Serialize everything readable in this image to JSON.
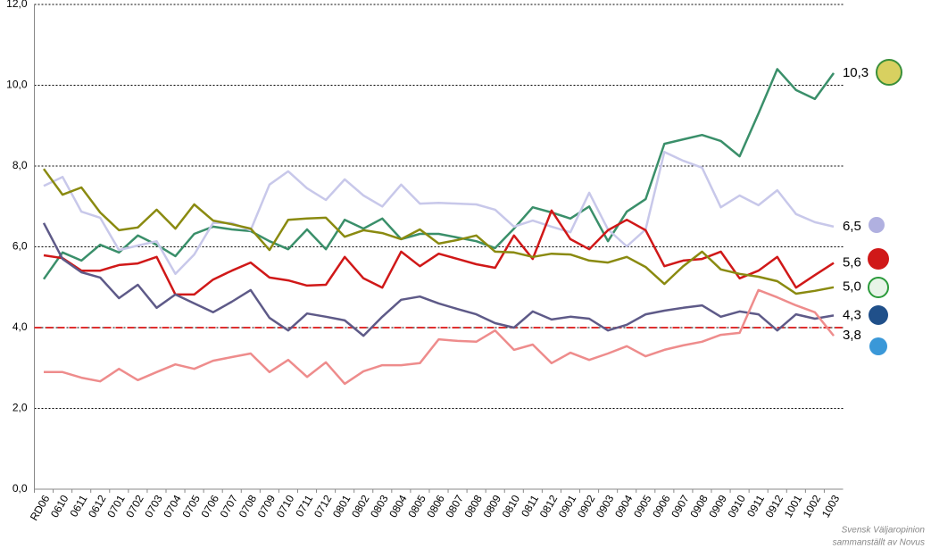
{
  "chart_data": {
    "type": "line",
    "categories": [
      "RD06",
      "0610",
      "0611",
      "0612",
      "0701",
      "0702",
      "0703",
      "0704",
      "0705",
      "0706",
      "0707",
      "0708",
      "0709",
      "0710",
      "0711",
      "0712",
      "0801",
      "0802",
      "0803",
      "0804",
      "0805",
      "0806",
      "0807",
      "0808",
      "0809",
      "0810",
      "0811",
      "0812",
      "0901",
      "0902",
      "0903",
      "0904",
      "0905",
      "0906",
      "0907",
      "0908",
      "0909",
      "0910",
      "0911",
      "0912",
      "1001",
      "1002",
      "1003"
    ],
    "ylim": [
      0,
      12
    ],
    "yticks": [
      {
        "value": 0,
        "label": "0,0"
      },
      {
        "value": 2,
        "label": "2,0"
      },
      {
        "value": 4,
        "label": "4,0"
      },
      {
        "value": 6,
        "label": "6,0"
      },
      {
        "value": 8,
        "label": "8,0"
      },
      {
        "value": 10,
        "label": "10,0"
      },
      {
        "value": 12,
        "label": "12,0"
      }
    ],
    "grid": true,
    "threshold": {
      "value": 4,
      "color": "#e03030"
    },
    "source": [
      "Svensk Väljaropinion",
      "sammanställt av Novus"
    ],
    "series": [
      {
        "color": "#3a8f6a",
        "values": [
          5.2,
          5.86,
          5.66,
          6.05,
          5.86,
          6.28,
          6.05,
          5.77,
          6.32,
          6.5,
          6.43,
          6.39,
          6.14,
          5.94,
          6.43,
          5.94,
          6.67,
          6.45,
          6.7,
          6.19,
          6.32,
          6.32,
          6.23,
          6.14,
          5.97,
          6.45,
          6.98,
          6.85,
          6.7,
          7.0,
          6.14,
          6.87,
          7.18,
          8.55,
          8.66,
          8.77,
          8.62,
          8.24,
          9.3,
          10.4,
          9.88,
          9.66,
          10.3
        ],
        "value_labels": [
          null,
          null,
          null,
          null,
          null,
          null,
          null,
          null,
          null,
          null,
          null,
          null,
          null,
          null,
          null,
          null,
          null,
          null,
          null,
          null,
          null,
          null,
          null,
          null,
          null,
          null,
          null,
          null,
          null,
          null,
          null,
          null,
          null,
          null,
          null,
          null,
          null,
          null,
          null,
          null,
          null,
          null,
          "10,3"
        ]
      },
      {
        "color": "#c8c8ea",
        "values": [
          7.51,
          7.73,
          6.87,
          6.72,
          5.92,
          6.03,
          6.14,
          5.33,
          5.81,
          6.59,
          6.59,
          6.41,
          7.54,
          7.87,
          7.45,
          7.16,
          7.67,
          7.27,
          7.0,
          7.54,
          7.07,
          7.09,
          7.07,
          7.05,
          6.92,
          6.5,
          6.65,
          6.5,
          6.36,
          7.34,
          6.43,
          6.01,
          6.43,
          8.35,
          8.13,
          7.96,
          6.98,
          7.27,
          7.03,
          7.4,
          6.81,
          6.61,
          6.5
        ],
        "value_labels": [
          null,
          null,
          null,
          null,
          null,
          null,
          null,
          null,
          null,
          null,
          null,
          null,
          null,
          null,
          null,
          null,
          null,
          null,
          null,
          null,
          null,
          null,
          null,
          null,
          null,
          null,
          null,
          null,
          null,
          null,
          null,
          null,
          null,
          null,
          null,
          null,
          null,
          null,
          null,
          null,
          null,
          null,
          "6,5"
        ]
      },
      {
        "color": "#d01818",
        "values": [
          5.79,
          5.72,
          5.41,
          5.41,
          5.55,
          5.59,
          5.75,
          4.82,
          4.82,
          5.19,
          5.41,
          5.61,
          5.24,
          5.17,
          5.04,
          5.06,
          5.75,
          5.22,
          4.99,
          5.88,
          5.52,
          5.83,
          5.7,
          5.57,
          5.48,
          6.28,
          5.7,
          6.9,
          6.19,
          5.94,
          6.41,
          6.67,
          6.41,
          5.52,
          5.66,
          5.7,
          5.88,
          5.22,
          5.41,
          5.75,
          4.99,
          5.3,
          5.6
        ],
        "value_labels": [
          null,
          null,
          null,
          null,
          null,
          null,
          null,
          null,
          null,
          null,
          null,
          null,
          null,
          null,
          null,
          null,
          null,
          null,
          null,
          null,
          null,
          null,
          null,
          null,
          null,
          null,
          null,
          null,
          null,
          null,
          null,
          null,
          null,
          null,
          null,
          null,
          null,
          null,
          null,
          null,
          null,
          null,
          "5,6"
        ]
      },
      {
        "color": "#8a8a10",
        "values": [
          7.93,
          7.29,
          7.47,
          6.85,
          6.41,
          6.48,
          6.92,
          6.45,
          7.05,
          6.65,
          6.56,
          6.45,
          5.92,
          6.67,
          6.7,
          6.72,
          6.25,
          6.41,
          6.34,
          6.19,
          6.43,
          6.08,
          6.17,
          6.28,
          5.88,
          5.86,
          5.75,
          5.83,
          5.81,
          5.66,
          5.61,
          5.75,
          5.5,
          5.08,
          5.52,
          5.88,
          5.44,
          5.33,
          5.26,
          5.15,
          4.84,
          4.91,
          5.0
        ],
        "value_labels": [
          null,
          null,
          null,
          null,
          null,
          null,
          null,
          null,
          null,
          null,
          null,
          null,
          null,
          null,
          null,
          null,
          null,
          null,
          null,
          null,
          null,
          null,
          null,
          null,
          null,
          null,
          null,
          null,
          null,
          null,
          null,
          null,
          null,
          null,
          null,
          null,
          null,
          null,
          null,
          null,
          null,
          null,
          "5,0"
        ]
      },
      {
        "color": "#5e5a88",
        "values": [
          6.59,
          5.7,
          5.37,
          5.24,
          4.73,
          5.06,
          4.49,
          4.82,
          4.6,
          4.38,
          4.64,
          4.93,
          4.24,
          3.93,
          4.35,
          4.27,
          4.18,
          3.8,
          4.27,
          4.69,
          4.77,
          4.6,
          4.46,
          4.33,
          4.11,
          4.0,
          4.4,
          4.2,
          4.27,
          4.22,
          3.93,
          4.07,
          4.33,
          4.42,
          4.49,
          4.55,
          4.27,
          4.4,
          4.33,
          3.93,
          4.33,
          4.22,
          4.3
        ],
        "value_labels": [
          null,
          null,
          null,
          null,
          null,
          null,
          null,
          null,
          null,
          null,
          null,
          null,
          null,
          null,
          null,
          null,
          null,
          null,
          null,
          null,
          null,
          null,
          null,
          null,
          null,
          null,
          null,
          null,
          null,
          null,
          null,
          null,
          null,
          null,
          null,
          null,
          null,
          null,
          null,
          null,
          null,
          null,
          "4,3"
        ]
      },
      {
        "color": "#ee8c8c",
        "values": [
          2.9,
          2.9,
          2.76,
          2.67,
          2.98,
          2.7,
          2.9,
          3.09,
          2.98,
          3.18,
          3.27,
          3.36,
          2.9,
          3.2,
          2.78,
          3.14,
          2.61,
          2.92,
          3.07,
          3.07,
          3.12,
          3.71,
          3.67,
          3.65,
          3.93,
          3.45,
          3.58,
          3.12,
          3.38,
          3.2,
          3.36,
          3.54,
          3.29,
          3.45,
          3.56,
          3.65,
          3.82,
          3.87,
          4.93,
          4.75,
          4.55,
          4.38,
          3.8
        ],
        "value_labels": [
          null,
          null,
          null,
          null,
          null,
          null,
          null,
          null,
          null,
          null,
          null,
          null,
          null,
          null,
          null,
          null,
          null,
          null,
          null,
          null,
          null,
          null,
          null,
          null,
          null,
          null,
          null,
          null,
          null,
          null,
          null,
          null,
          null,
          null,
          null,
          null,
          null,
          null,
          null,
          null,
          null,
          null,
          "3,8"
        ]
      }
    ]
  }
}
